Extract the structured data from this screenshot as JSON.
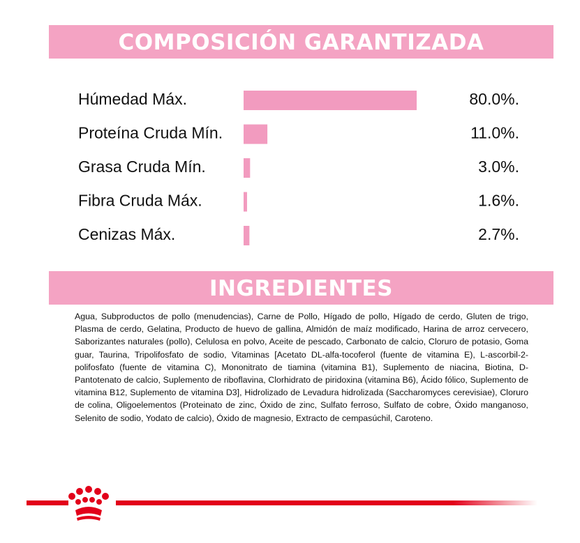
{
  "sections": [
    {
      "title": "COMPOSICIÓN GARANTIZADA"
    },
    {
      "title": "INGREDIENTES",
      "text": "Agua, Subproductos de pollo (menudencias), Carne de Pollo, Hígado de pollo, Hígado de cerdo, Gluten de trigo, Plasma de cerdo, Gelatina, Producto de huevo de gallina, Almidón de maíz modificado, Harina de arroz cervecero, Saborizantes naturales (pollo), Celulosa en polvo, Aceite de pescado, Carbonato de calcio, Cloruro de potasio, Goma guar, Taurina, Tripolifosfato de sodio, Vitaminas [Acetato DL-alfa-tocoferol (fuente de vitamina E), L-ascorbil-2-polifosfato (fuente de vitamina C), Mononitrato de tiamina (vitamina B1), Suplemento de niacina, Biotina, D-Pantotenato de calcio, Suplemento de riboflavina, Clorhidrato de piridoxina (vitamina B6), Ácido fólico, Suplemento de vitamina B12, Suplemento de vitamina D3], Hidrolizado de Levadura hidrolizada (Saccharomyces cerevisiae), Cloruro de colina, Oligoelementos (Proteinato de zinc, Óxido de zinc, Sulfato ferroso, Sulfato de cobre, Óxido manganoso, Selenito de sodio, Yodato de calcio), Óxido de magnesio, Extracto de cempasúchil, Caroteno."
    }
  ],
  "chart_data": {
    "type": "bar",
    "orientation": "horizontal",
    "color": "#f29bbf",
    "categories": [
      "Húmedad Máx.",
      "Proteína Cruda Mín.",
      "Grasa Cruda Mín.",
      "Fibra Cruda Máx.",
      "Cenizas Máx."
    ],
    "values": [
      80.0,
      11.0,
      3.0,
      1.6,
      2.7
    ],
    "value_labels": [
      "80.0%.",
      "11.0%.",
      "3.0%.",
      "1.6%.",
      "2.7%."
    ]
  }
}
